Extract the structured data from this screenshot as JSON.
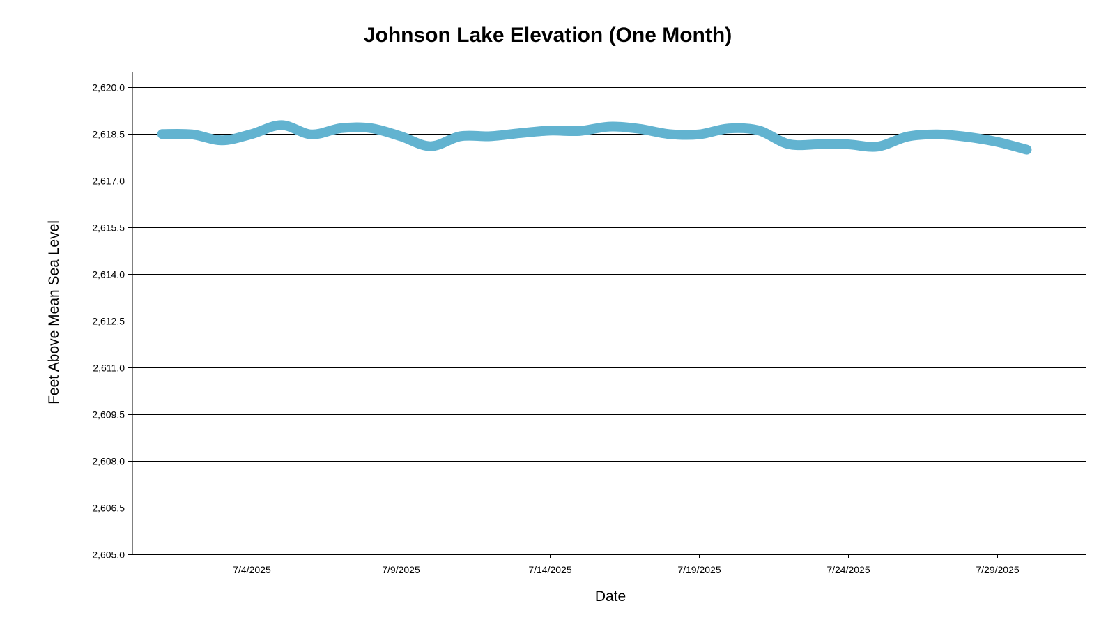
{
  "chart_data": {
    "type": "line",
    "title": "Johnson Lake Elevation (One Month)",
    "xlabel": "Date",
    "ylabel": "Feet Above Mean Sea Level",
    "x_domain": [
      "2025-06-30",
      "2025-08-01"
    ],
    "ylim": [
      2605.0,
      2620.5
    ],
    "y_ticks": [
      2605.0,
      2606.5,
      2608.0,
      2609.5,
      2611.0,
      2612.5,
      2614.0,
      2615.5,
      2617.0,
      2618.5,
      2620.0
    ],
    "y_tick_labels": [
      "2,605.0",
      "2,606.5",
      "2,608.0",
      "2,609.5",
      "2,611.0",
      "2,612.5",
      "2,614.0",
      "2,615.5",
      "2,617.0",
      "2,618.5",
      "2,620.0"
    ],
    "x_ticks": [
      "2025-07-04",
      "2025-07-09",
      "2025-07-14",
      "2025-07-19",
      "2025-07-24",
      "2025-07-29"
    ],
    "x_tick_labels": [
      "7/4/2025",
      "7/9/2025",
      "7/14/2025",
      "7/19/2025",
      "7/24/2025",
      "7/29/2025"
    ],
    "grid": true,
    "legend": false,
    "series": [
      {
        "color": "#62b3d0",
        "points": [
          {
            "x": "2025-07-01",
            "y": 2618.5
          },
          {
            "x": "2025-07-02",
            "y": 2618.49
          },
          {
            "x": "2025-07-03",
            "y": 2618.3
          },
          {
            "x": "2025-07-04",
            "y": 2618.5
          },
          {
            "x": "2025-07-05",
            "y": 2618.79
          },
          {
            "x": "2025-07-06",
            "y": 2618.49
          },
          {
            "x": "2025-07-07",
            "y": 2618.69
          },
          {
            "x": "2025-07-08",
            "y": 2618.69
          },
          {
            "x": "2025-07-09",
            "y": 2618.43
          },
          {
            "x": "2025-07-10",
            "y": 2618.11
          },
          {
            "x": "2025-07-11",
            "y": 2618.43
          },
          {
            "x": "2025-07-12",
            "y": 2618.43
          },
          {
            "x": "2025-07-13",
            "y": 2618.53
          },
          {
            "x": "2025-07-14",
            "y": 2618.61
          },
          {
            "x": "2025-07-15",
            "y": 2618.6
          },
          {
            "x": "2025-07-16",
            "y": 2618.74
          },
          {
            "x": "2025-07-17",
            "y": 2618.67
          },
          {
            "x": "2025-07-18",
            "y": 2618.5
          },
          {
            "x": "2025-07-19",
            "y": 2618.49
          },
          {
            "x": "2025-07-20",
            "y": 2618.68
          },
          {
            "x": "2025-07-21",
            "y": 2618.62
          },
          {
            "x": "2025-07-22",
            "y": 2618.18
          },
          {
            "x": "2025-07-23",
            "y": 2618.17
          },
          {
            "x": "2025-07-24",
            "y": 2618.17
          },
          {
            "x": "2025-07-25",
            "y": 2618.1
          },
          {
            "x": "2025-07-26",
            "y": 2618.42
          },
          {
            "x": "2025-07-27",
            "y": 2618.49
          },
          {
            "x": "2025-07-28",
            "y": 2618.41
          },
          {
            "x": "2025-07-29",
            "y": 2618.25
          },
          {
            "x": "2025-07-30",
            "y": 2618.0
          }
        ]
      }
    ]
  }
}
